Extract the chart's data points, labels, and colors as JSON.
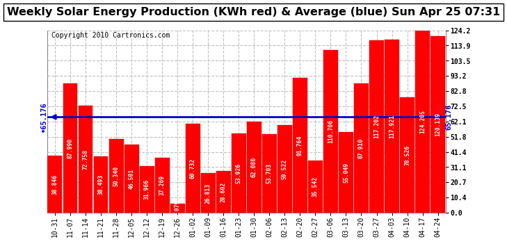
{
  "title": "Weekly Solar Energy Production (KWh red) & Average (blue) Sun Apr 25 07:31",
  "copyright": "Copyright 2010 Cartronics.com",
  "average": 65.176,
  "bar_color": "#FF0000",
  "avg_color": "#0000CC",
  "background_color": "#FFFFFF",
  "plot_bg_color": "#FFFFFF",
  "grid_color": "#C0C0C0",
  "categories": [
    "10-31",
    "11-07",
    "11-14",
    "11-21",
    "11-28",
    "12-05",
    "12-12",
    "12-19",
    "12-26",
    "01-02",
    "01-09",
    "01-16",
    "01-23",
    "01-30",
    "02-06",
    "02-13",
    "02-20",
    "02-27",
    "03-06",
    "03-13",
    "03-20",
    "03-27",
    "04-03",
    "04-10",
    "04-17",
    "04-24"
  ],
  "values": [
    38.846,
    87.99,
    72.758,
    38.493,
    50.34,
    46.501,
    31.966,
    37.269,
    6.079,
    60.732,
    26.813,
    28.602,
    53.926,
    62.08,
    53.703,
    59.522,
    91.764,
    35.542,
    110.706,
    55.049,
    87.91,
    117.202,
    117.921,
    78.526,
    124.205,
    120.139
  ],
  "ylim": [
    0.0,
    124.2
  ],
  "yticks": [
    0.0,
    10.4,
    20.7,
    31.1,
    41.4,
    51.8,
    62.1,
    72.5,
    82.8,
    93.2,
    103.5,
    113.9,
    124.2
  ],
  "title_fontsize": 11.5,
  "copyright_fontsize": 7,
  "tick_fontsize": 7,
  "bar_label_fontsize": 5.8,
  "avg_label_fontsize": 7.5
}
